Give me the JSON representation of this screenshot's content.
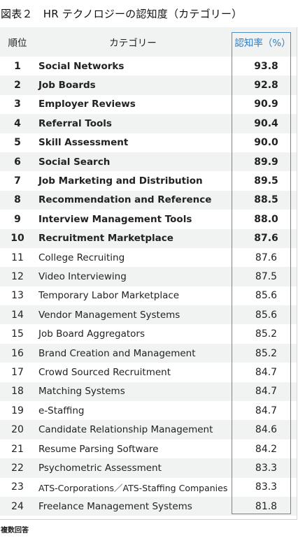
{
  "title": "図表２　HR テクノロジーの認知度（カテゴリー）",
  "header": {
    "rank": "順位",
    "category": "カテゴリー",
    "value": "認知率（%）"
  },
  "rows": [
    {
      "rank": "1",
      "name": "Social Networks",
      "value": "93.8",
      "bold": true
    },
    {
      "rank": "2",
      "name": "Job Boards",
      "value": "92.8",
      "bold": true
    },
    {
      "rank": "3",
      "name": "Employer Reviews",
      "value": "90.9",
      "bold": true
    },
    {
      "rank": "4",
      "name": "Referral Tools",
      "value": "90.4",
      "bold": true
    },
    {
      "rank": "5",
      "name": "Skill Assessment",
      "value": "90.0",
      "bold": true
    },
    {
      "rank": "6",
      "name": "Social Search",
      "value": "89.9",
      "bold": true
    },
    {
      "rank": "7",
      "name": "Job Marketing and Distribution",
      "value": "89.5",
      "bold": true
    },
    {
      "rank": "8",
      "name": "Recommendation and Reference",
      "value": "88.5",
      "bold": true
    },
    {
      "rank": "9",
      "name": "Interview Management Tools",
      "value": "88.0",
      "bold": true
    },
    {
      "rank": "10",
      "name": "Recruitment Marketplace",
      "value": "87.6",
      "bold": true
    },
    {
      "rank": "11",
      "name": "College Recruiting",
      "value": "87.6",
      "bold": false
    },
    {
      "rank": "12",
      "name": "Video Interviewing",
      "value": "87.5",
      "bold": false
    },
    {
      "rank": "13",
      "name": "Temporary Labor Marketplace",
      "value": "85.6",
      "bold": false
    },
    {
      "rank": "14",
      "name": "Vendor Management Systems",
      "value": "85.6",
      "bold": false
    },
    {
      "rank": "15",
      "name": "Job Board Aggregators",
      "value": "85.2",
      "bold": false
    },
    {
      "rank": "16",
      "name": "Brand Creation and Management",
      "value": "85.2",
      "bold": false
    },
    {
      "rank": "17",
      "name": "Crowd Sourced Recruitment",
      "value": "84.7",
      "bold": false
    },
    {
      "rank": "18",
      "name": "Matching Systems",
      "value": "84.7",
      "bold": false
    },
    {
      "rank": "19",
      "name": "e-Staffing",
      "value": "84.7",
      "bold": false
    },
    {
      "rank": "20",
      "name": "Candidate Relationship Management",
      "value": "84.6",
      "bold": false
    },
    {
      "rank": "21",
      "name": "Resume Parsing Software",
      "value": "84.2",
      "bold": false
    },
    {
      "rank": "22",
      "name": "Psychometric Assessment",
      "value": "83.3",
      "bold": false
    },
    {
      "rank": "23",
      "name": "ATS-Corporations／ATS-Staffing Companies",
      "value": "83.3",
      "bold": false
    },
    {
      "rank": "24",
      "name": "Freelance Management Systems",
      "value": "81.8",
      "bold": false
    }
  ],
  "note": "複数回答",
  "colors": {
    "accent": "#4a8fc8",
    "header_text": "#2e7bbf",
    "stripe": "#f1f2f2"
  }
}
